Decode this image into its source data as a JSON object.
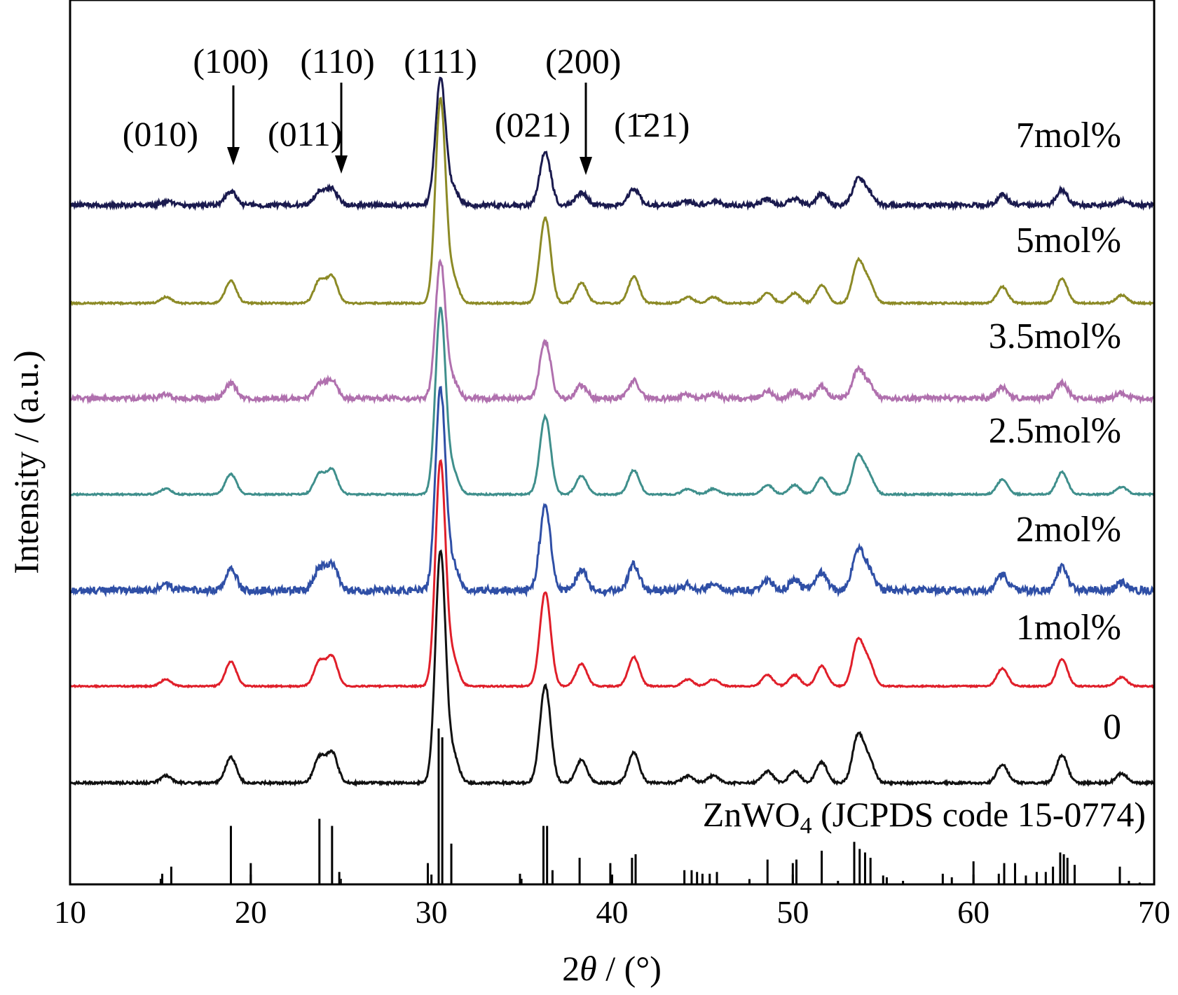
{
  "chart_data": {
    "type": "line",
    "xlabel": "2θ / (°)",
    "xlabel_parts": [
      "2",
      "θ",
      " / (°)"
    ],
    "ylabel": "Intensity / (a.u.)",
    "xlim": [
      10,
      70
    ],
    "xticks": [
      10,
      20,
      30,
      40,
      50,
      60,
      70
    ],
    "grid": false,
    "legend": "labels placed at right end of each curve",
    "series": [
      {
        "name": "7mol%",
        "color": "#1a1a4e",
        "seed": 7,
        "noise": 0.9
      },
      {
        "name": "5mol%",
        "color": "#8c8a26",
        "seed": 5,
        "noise": 0.2
      },
      {
        "name": "3.5mol%",
        "color": "#b070ae",
        "seed": 35,
        "noise": 0.9
      },
      {
        "name": "2.5mol%",
        "color": "#3f8f8c",
        "seed": 25,
        "noise": 0.2
      },
      {
        "name": "2mol%",
        "color": "#2f4fa6",
        "seed": 2,
        "noise": 0.9
      },
      {
        "name": "1mol%",
        "color": "#e01f2a",
        "seed": 1,
        "noise": 0.15
      },
      {
        "name": "0",
        "color": "#111111",
        "seed": 0,
        "noise": 0.25
      }
    ],
    "peaks": [
      {
        "x": 15.3,
        "h": 0.03
      },
      {
        "x": 18.9,
        "h": 0.11
      },
      {
        "x": 23.8,
        "h": 0.11
      },
      {
        "x": 24.5,
        "h": 0.13
      },
      {
        "x": 30.5,
        "h": 1.0
      },
      {
        "x": 31.2,
        "h": 0.12
      },
      {
        "x": 36.3,
        "h": 0.42
      },
      {
        "x": 38.3,
        "h": 0.1
      },
      {
        "x": 41.2,
        "h": 0.13
      },
      {
        "x": 44.2,
        "h": 0.03
      },
      {
        "x": 45.6,
        "h": 0.03
      },
      {
        "x": 48.6,
        "h": 0.05
      },
      {
        "x": 50.1,
        "h": 0.05
      },
      {
        "x": 51.6,
        "h": 0.09
      },
      {
        "x": 53.6,
        "h": 0.2
      },
      {
        "x": 54.2,
        "h": 0.1
      },
      {
        "x": 61.6,
        "h": 0.08
      },
      {
        "x": 64.9,
        "h": 0.12
      },
      {
        "x": 68.2,
        "h": 0.04
      }
    ],
    "reference": {
      "label_main": "ZnWO",
      "label_sub": "4",
      "label_rest": " (JCPDS code 15-0774)",
      "lines": [
        {
          "x": 15.1,
          "h": 0.06
        },
        {
          "x": 15.6,
          "h": 0.1
        },
        {
          "x": 18.9,
          "h": 0.33
        },
        {
          "x": 20.0,
          "h": 0.12
        },
        {
          "x": 23.8,
          "h": 0.37
        },
        {
          "x": 24.5,
          "h": 0.33
        },
        {
          "x": 24.9,
          "h": 0.07
        },
        {
          "x": 29.8,
          "h": 0.12
        },
        {
          "x": 30.4,
          "h": 0.88
        },
        {
          "x": 30.6,
          "h": 0.83
        },
        {
          "x": 31.1,
          "h": 0.23
        },
        {
          "x": 34.9,
          "h": 0.06
        },
        {
          "x": 36.2,
          "h": 0.33
        },
        {
          "x": 36.4,
          "h": 0.33
        },
        {
          "x": 36.7,
          "h": 0.08
        },
        {
          "x": 38.2,
          "h": 0.15
        },
        {
          "x": 39.9,
          "h": 0.12
        },
        {
          "x": 41.1,
          "h": 0.15
        },
        {
          "x": 41.3,
          "h": 0.17
        },
        {
          "x": 44.0,
          "h": 0.08
        },
        {
          "x": 44.4,
          "h": 0.08
        },
        {
          "x": 44.7,
          "h": 0.07
        },
        {
          "x": 45.0,
          "h": 0.06
        },
        {
          "x": 45.4,
          "h": 0.06
        },
        {
          "x": 45.8,
          "h": 0.07
        },
        {
          "x": 47.6,
          "h": 0.03
        },
        {
          "x": 48.6,
          "h": 0.14
        },
        {
          "x": 50.0,
          "h": 0.12
        },
        {
          "x": 50.2,
          "h": 0.14
        },
        {
          "x": 51.6,
          "h": 0.19
        },
        {
          "x": 52.5,
          "h": 0.02
        },
        {
          "x": 53.4,
          "h": 0.24
        },
        {
          "x": 53.7,
          "h": 0.2
        },
        {
          "x": 54.0,
          "h": 0.18
        },
        {
          "x": 54.3,
          "h": 0.15
        },
        {
          "x": 55.0,
          "h": 0.05
        },
        {
          "x": 55.2,
          "h": 0.04
        },
        {
          "x": 56.1,
          "h": 0.02
        },
        {
          "x": 58.3,
          "h": 0.06
        },
        {
          "x": 58.8,
          "h": 0.04
        },
        {
          "x": 60.0,
          "h": 0.13
        },
        {
          "x": 61.4,
          "h": 0.06
        },
        {
          "x": 61.7,
          "h": 0.12
        },
        {
          "x": 62.3,
          "h": 0.12
        },
        {
          "x": 62.9,
          "h": 0.05
        },
        {
          "x": 63.5,
          "h": 0.07
        },
        {
          "x": 64.0,
          "h": 0.07
        },
        {
          "x": 64.4,
          "h": 0.1
        },
        {
          "x": 64.8,
          "h": 0.18
        },
        {
          "x": 65.0,
          "h": 0.17
        },
        {
          "x": 65.2,
          "h": 0.15
        },
        {
          "x": 65.6,
          "h": 0.11
        },
        {
          "x": 68.1,
          "h": 0.1
        },
        {
          "x": 68.6,
          "h": 0.02
        },
        {
          "x": 69.2,
          "h": 0.01
        }
      ]
    },
    "annotations": [
      {
        "text": "(010)",
        "x": 15.0
      },
      {
        "text": "(100)",
        "x": 18.9,
        "arrow": true
      },
      {
        "text": "(011)",
        "x": 23.0
      },
      {
        "text": "(110)",
        "x": 24.8,
        "arrow": true
      },
      {
        "text": "(111)",
        "x": 30.5
      },
      {
        "text": "(021)",
        "x": 35.6
      },
      {
        "text": "(200)",
        "x": 38.4,
        "arrow": true
      },
      {
        "text": "(1̄21)",
        "x": 42.2
      }
    ]
  }
}
